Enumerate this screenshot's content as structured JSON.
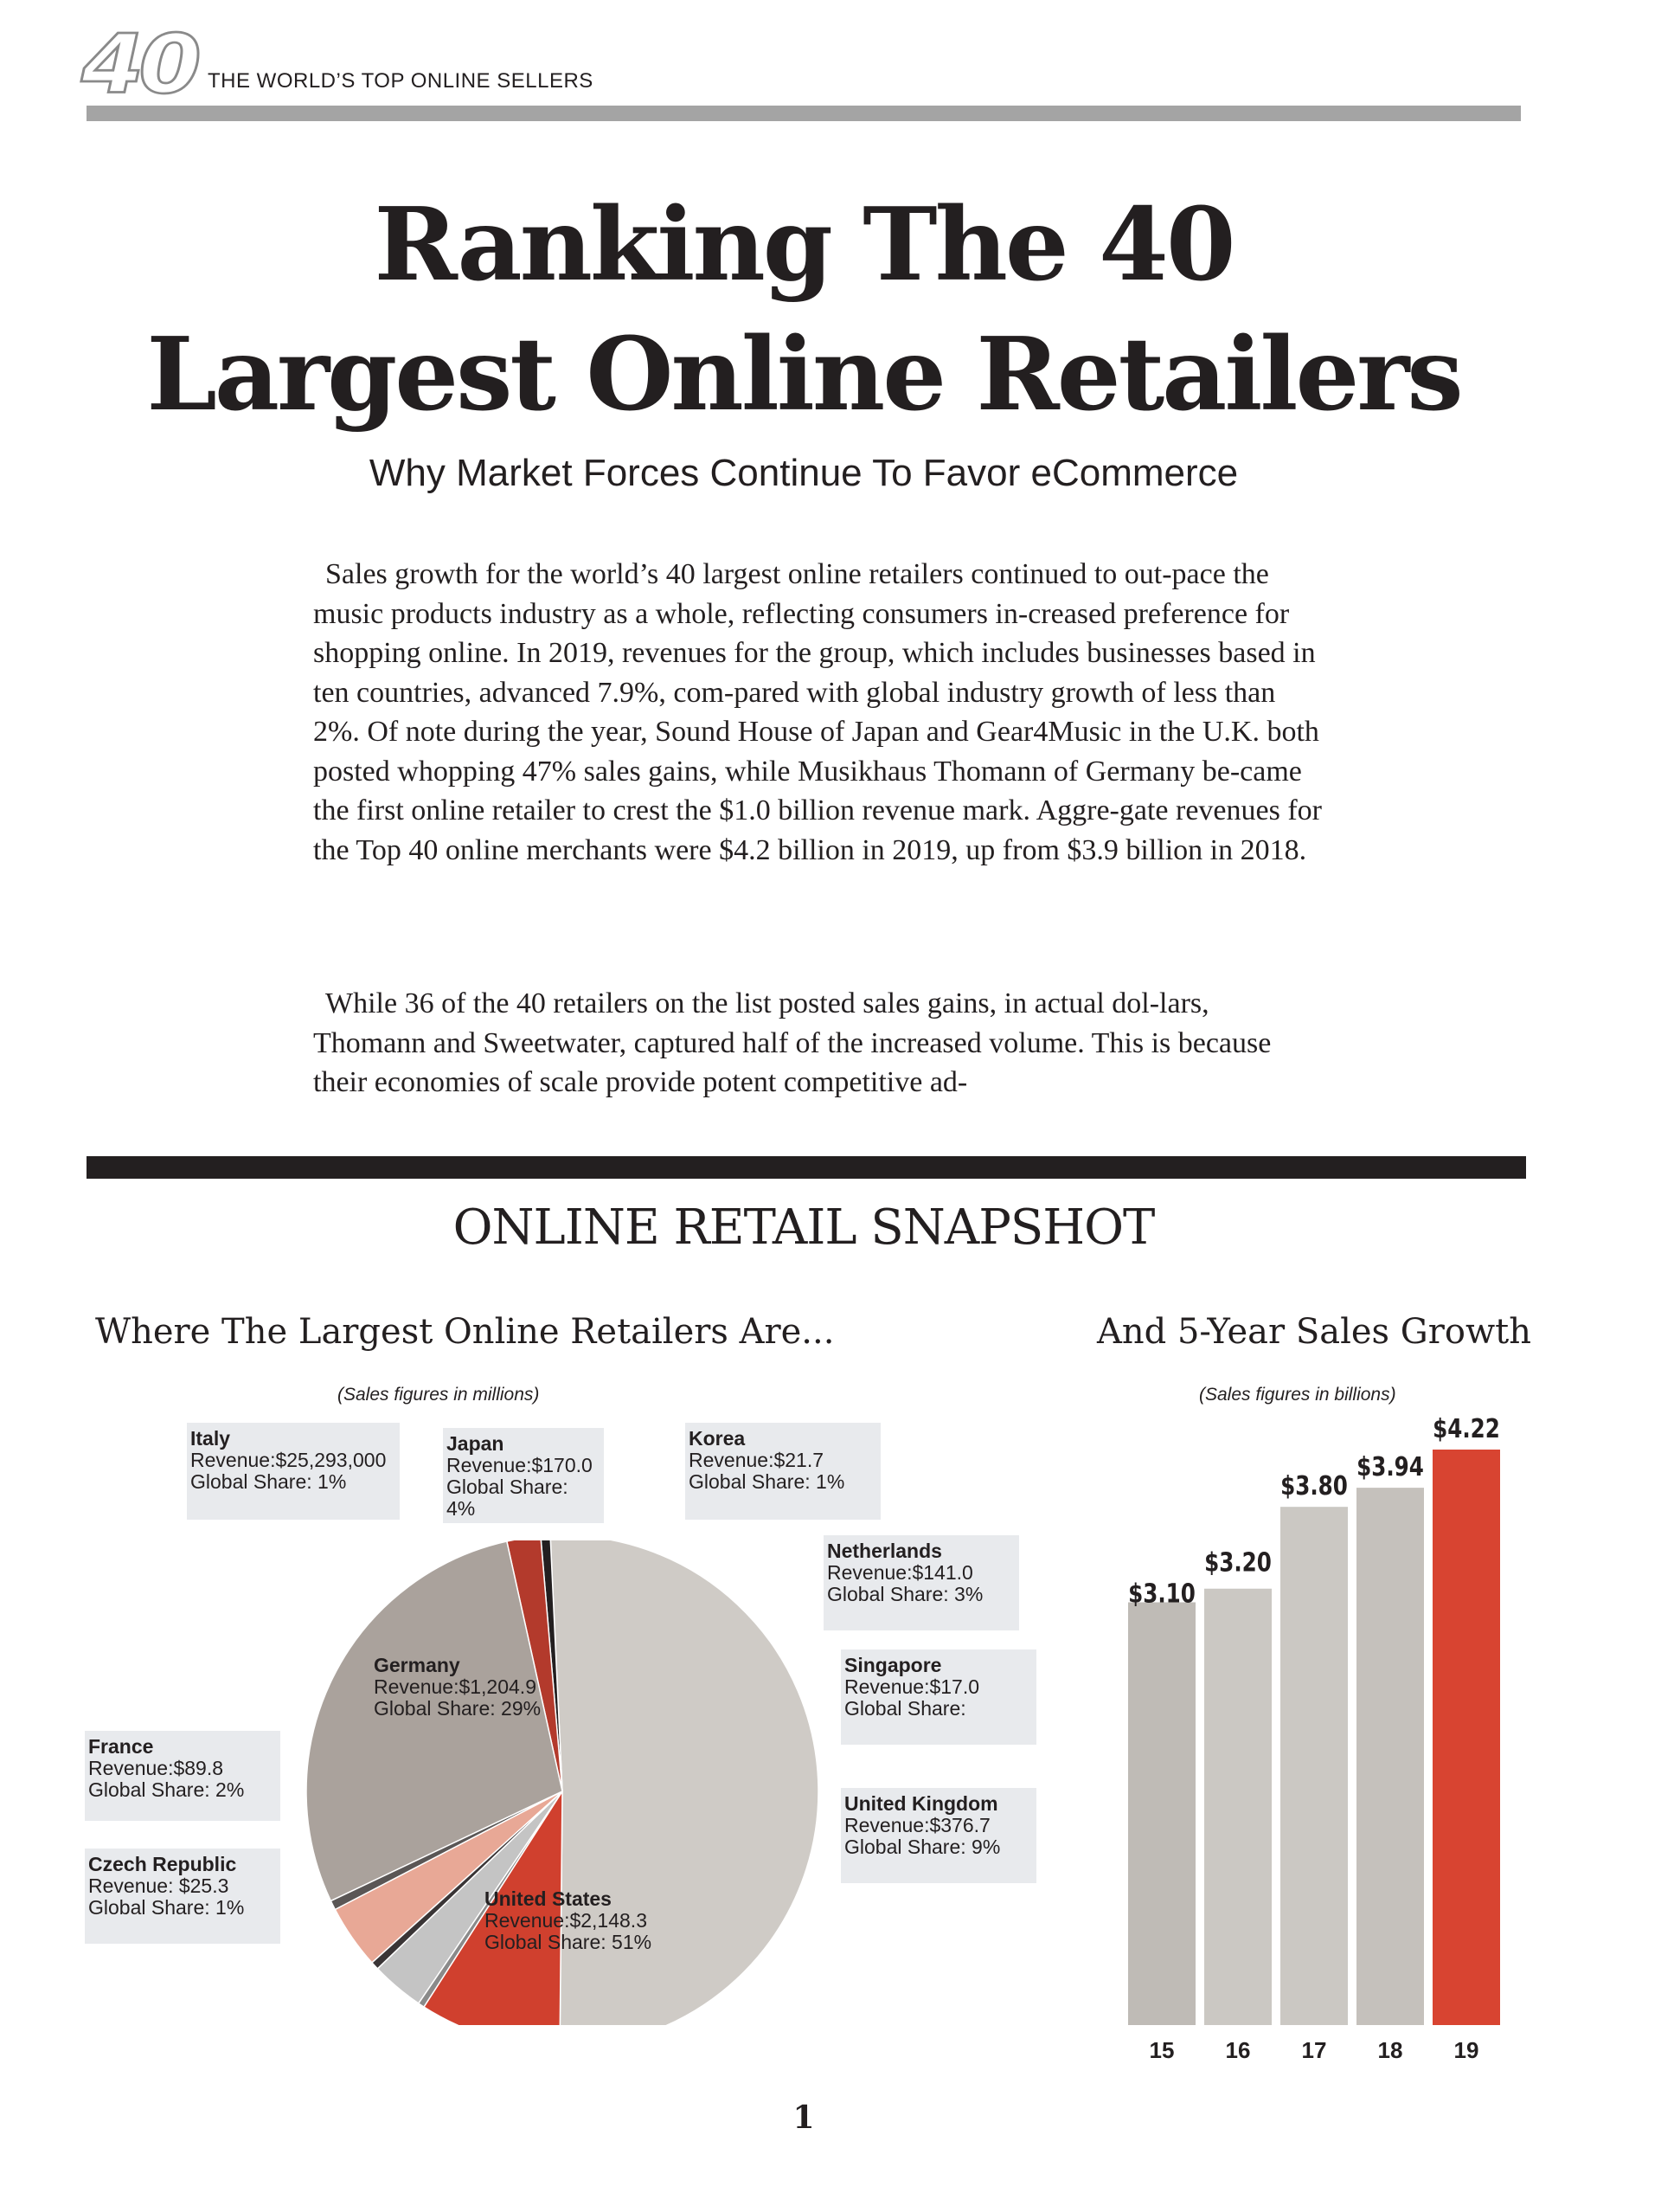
{
  "header": {
    "logo_text": "40",
    "section_label": "THE WORLD’S TOP ONLINE SELLERS"
  },
  "article": {
    "title_line1": "Ranking The 40",
    "title_line2": "Largest Online Retailers",
    "subtitle": "Why Market Forces Continue To Favor eCommerce",
    "paragraph_1": "Sales growth for the world’s 40 largest online retailers continued to out-pace the music products industry as a whole, reflecting consumers in-creased preference for shopping online. In 2019, revenues for the group, which includes businesses based in ten countries, advanced 7.9%, com-pared with global industry growth of less than 2%. Of note during the year, Sound House of Japan and Gear4Music in the U.K. both posted whopping 47% sales gains, while Musikhaus Thomann of Germany be-came the first online retailer to crest the $1.0 billion revenue mark. Aggre-gate revenues for the Top 40 online merchants were $4.2 billion in 2019, up from $3.9 billion in 2018.",
    "paragraph_2": "While 36 of the 40 retailers on the list posted sales gains, in actual dol-lars, Thomann and Sweetwater, captured half of the increased volume. This is because their economies of scale provide potent competitive ad-"
  },
  "snapshot": {
    "title": "ONLINE RETAIL SNAPSHOT",
    "left_heading": "Where The Largest Online Retailers Are...",
    "right_heading": "And 5-Year Sales Growth",
    "pie_note": "(Sales figures in millions)",
    "bar_note": "(Sales figures in billions)",
    "countries": {
      "italy": {
        "name": "Italy",
        "revenue": "Revenue:$25,293,000",
        "share": "Global Share: 1%"
      },
      "japan": {
        "name": "Japan",
        "revenue": "Revenue:$170.0",
        "share": "Global Share: 4%"
      },
      "korea": {
        "name": "Korea",
        "revenue": "Revenue:$21.7",
        "share": "Global Share: 1%"
      },
      "netherlands": {
        "name": "Netherlands",
        "revenue": "Revenue:$141.0",
        "share": "Global Share: 3%"
      },
      "germany": {
        "name": "Germany",
        "revenue": "Revenue:$1,204.9",
        "share": "Global Share: 29%"
      },
      "singapore": {
        "name": "Singapore",
        "revenue": "Revenue:$17.0",
        "share": "Global Share:"
      },
      "france": {
        "name": "France",
        "revenue": "Revenue:$89.8",
        "share": "Global Share: 2%"
      },
      "uk": {
        "name": "United Kingdom",
        "revenue": "Revenue:$376.7",
        "share": "Global Share: 9%"
      },
      "czech": {
        "name": "Czech Republic",
        "revenue": "Revenue: $25.3",
        "share": "Global Share: 1%"
      },
      "us": {
        "name": "United States",
        "revenue": "Revenue:$2,148.3",
        "share": "Global Share: 51%"
      }
    }
  },
  "chart_data": [
    {
      "type": "pie",
      "title": "Where The Largest Online Retailers Are...",
      "note": "(Sales figures in millions)",
      "slices": [
        {
          "label": "United States",
          "value": 2148.3,
          "share_pct": 51,
          "color": "#cfcbc6"
        },
        {
          "label": "Czech Republic",
          "value": 25.3,
          "share_pct": 1,
          "color": "#231f20"
        },
        {
          "label": "France",
          "value": 89.8,
          "share_pct": 2,
          "color": "#b33a2c"
        },
        {
          "label": "Germany",
          "value": 1204.9,
          "share_pct": 29,
          "color": "#aaa29c"
        },
        {
          "label": "Italy",
          "value": 25.3,
          "share_pct": 1,
          "color": "#5a5655"
        },
        {
          "label": "Japan",
          "value": 170.0,
          "share_pct": 4,
          "color": "#e8a896"
        },
        {
          "label": "Korea",
          "value": 21.7,
          "share_pct": 1,
          "color": "#3a3536"
        },
        {
          "label": "Netherlands",
          "value": 141.0,
          "share_pct": 3,
          "color": "#c4c4c4"
        },
        {
          "label": "Singapore",
          "value": 17.0,
          "share_pct": null,
          "color": "#8a8a8a"
        },
        {
          "label": "United Kingdom",
          "value": 376.7,
          "share_pct": 9,
          "color": "#d0402e"
        }
      ]
    },
    {
      "type": "bar",
      "title": "And 5-Year Sales Growth",
      "note": "(Sales figures in billions)",
      "categories": [
        "15",
        "16",
        "17",
        "18",
        "19"
      ],
      "values": [
        3.1,
        3.2,
        3.8,
        3.94,
        4.22
      ],
      "value_labels": [
        "$3.10",
        "$3.20",
        "$3.80",
        "$3.94",
        "$4.22"
      ],
      "colors": [
        "#bfbbb6",
        "#cbc8c3",
        "#cbc8c3",
        "#c5c1bc",
        "#d84431"
      ],
      "ylim": [
        0,
        4.22
      ],
      "grid": false
    }
  ],
  "page_number": "1"
}
